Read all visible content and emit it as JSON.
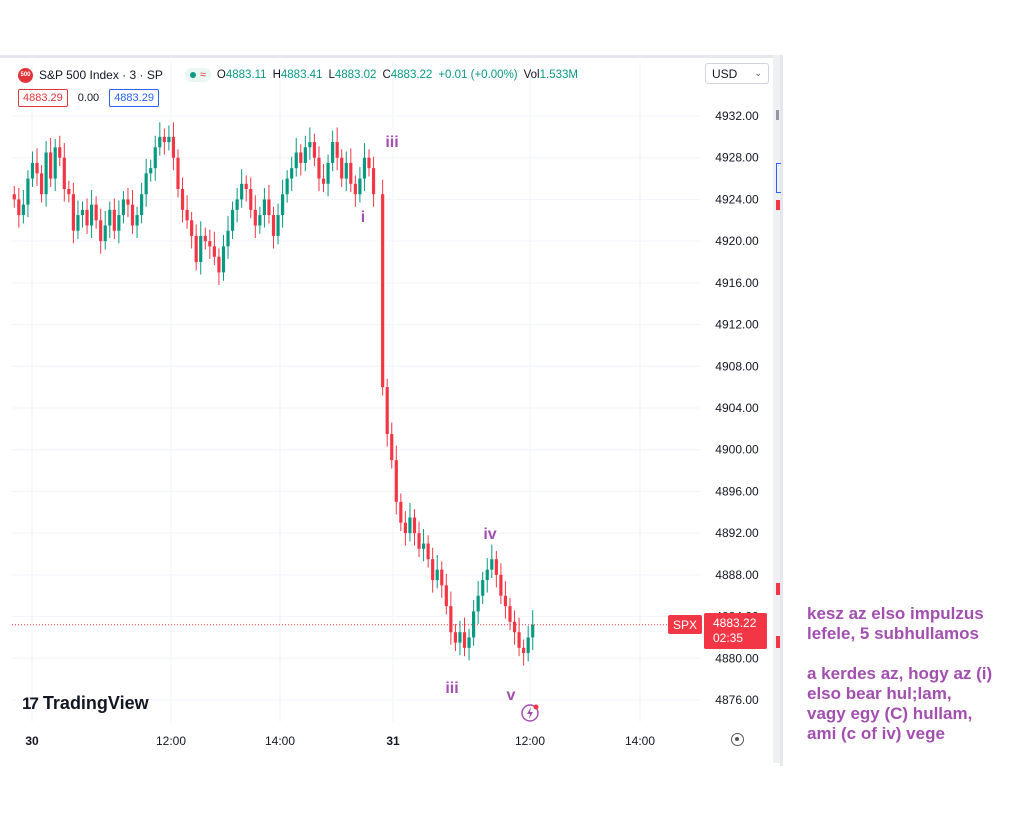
{
  "legend": {
    "symbol_logo": "500",
    "title": "S&P 500 Index · 3 · SP",
    "status_wave_icon": "≈",
    "open_label": "O",
    "open": "4883.11",
    "high_label": "H",
    "high": "4883.41",
    "low_label": "L",
    "low": "4883.02",
    "close_label": "C",
    "close": "4883.22",
    "change": "+0.01 (+0.00%)",
    "volume_label": "Vol",
    "volume": "1.533M"
  },
  "price_row": {
    "bid": "4883.29",
    "spread": "0.00",
    "ask": "4883.29"
  },
  "currency": {
    "selected": "USD",
    "icon": "chevron-down-icon"
  },
  "brand": {
    "mark": "17",
    "name": "TradingView"
  },
  "last_price": {
    "symbol": "SPX",
    "price": "4883.22",
    "countdown": "02:35"
  },
  "colors": {
    "up": "#089981",
    "down": "#f23645",
    "annotation": "#a24fb0",
    "grid": "#f0f3fa"
  },
  "note": {
    "line1": "kesz az elso impulzus\nlefele, 5 subhullamos",
    "line2": "a kerdes az, hogy az (i)\nelso bear hul;lam,\nvagy egy (C) hullam,\nami (c of iv) vege"
  },
  "chart_data": {
    "type": "candlestick",
    "interval": "3",
    "y_ticks": [
      "4932.00",
      "4928.00",
      "4924.00",
      "4920.00",
      "4916.00",
      "4912.00",
      "4908.00",
      "4904.00",
      "4900.00",
      "4896.00",
      "4892.00",
      "4888.00",
      "4884.00",
      "4880.00",
      "4876.00"
    ],
    "ylim": [
      4873.5,
      4935.5
    ],
    "x_ticks": [
      "30",
      "12:00",
      "14:00",
      "31",
      "12:00",
      "14:00"
    ],
    "grid": true,
    "current_price": 4883.22,
    "waves": [
      {
        "label": "iii",
        "after_close": 4929.5
      },
      {
        "label": "i",
        "after_close": 4921.5
      },
      {
        "label": "iv",
        "after_close": 4891.5
      },
      {
        "label": "iii",
        "after_close": 4877.5
      },
      {
        "label": "v",
        "after_close": 4876.5
      }
    ],
    "closes": [
      4924.0,
      4922.5,
      4923.5,
      4926.0,
      4927.5,
      4926.5,
      4924.5,
      4928.5,
      4926.0,
      4929.0,
      4928.0,
      4925.0,
      4924.5,
      4921.0,
      4922.5,
      4923.0,
      4921.5,
      4923.5,
      4922.0,
      4920.0,
      4921.5,
      4923.0,
      4921.0,
      4922.5,
      4924.0,
      4923.5,
      4921.5,
      4922.5,
      4924.5,
      4926.5,
      4927.0,
      4929.0,
      4930.0,
      4929.5,
      4930.0,
      4928.0,
      4925.0,
      4923.0,
      4922.0,
      4920.5,
      4918.0,
      4920.5,
      4920.0,
      4919.5,
      4918.5,
      4917.0,
      4919.5,
      4921.0,
      4923.0,
      4924.0,
      4925.5,
      4925.0,
      4923.0,
      4921.5,
      4922.5,
      4924.0,
      4922.5,
      4920.5,
      4922.5,
      4924.5,
      4926.0,
      4927.0,
      4928.5,
      4927.5,
      4929.0,
      4929.5,
      4928.0,
      4926.0,
      4925.5,
      4927.5,
      4929.5,
      4928.0,
      4926.0,
      4927.5,
      4925.5,
      4924.5,
      4926.0,
      4928.0,
      4927.0,
      4924.5,
      4906.0,
      4901.5,
      4899.0,
      4895.0,
      4893.0,
      4892.0,
      4893.5,
      4892.0,
      4890.5,
      4891.0,
      4889.5,
      4887.5,
      4888.5,
      4887.0,
      4885.0,
      4882.5,
      4881.5,
      4882.5,
      4881.0,
      4882.0,
      4884.5,
      4886.0,
      4887.5,
      4888.5,
      4889.5,
      4888.0,
      4886.0,
      4885.0,
      4883.5,
      4882.5,
      4881.0,
      4880.5,
      4882.0,
      4883.22
    ]
  }
}
